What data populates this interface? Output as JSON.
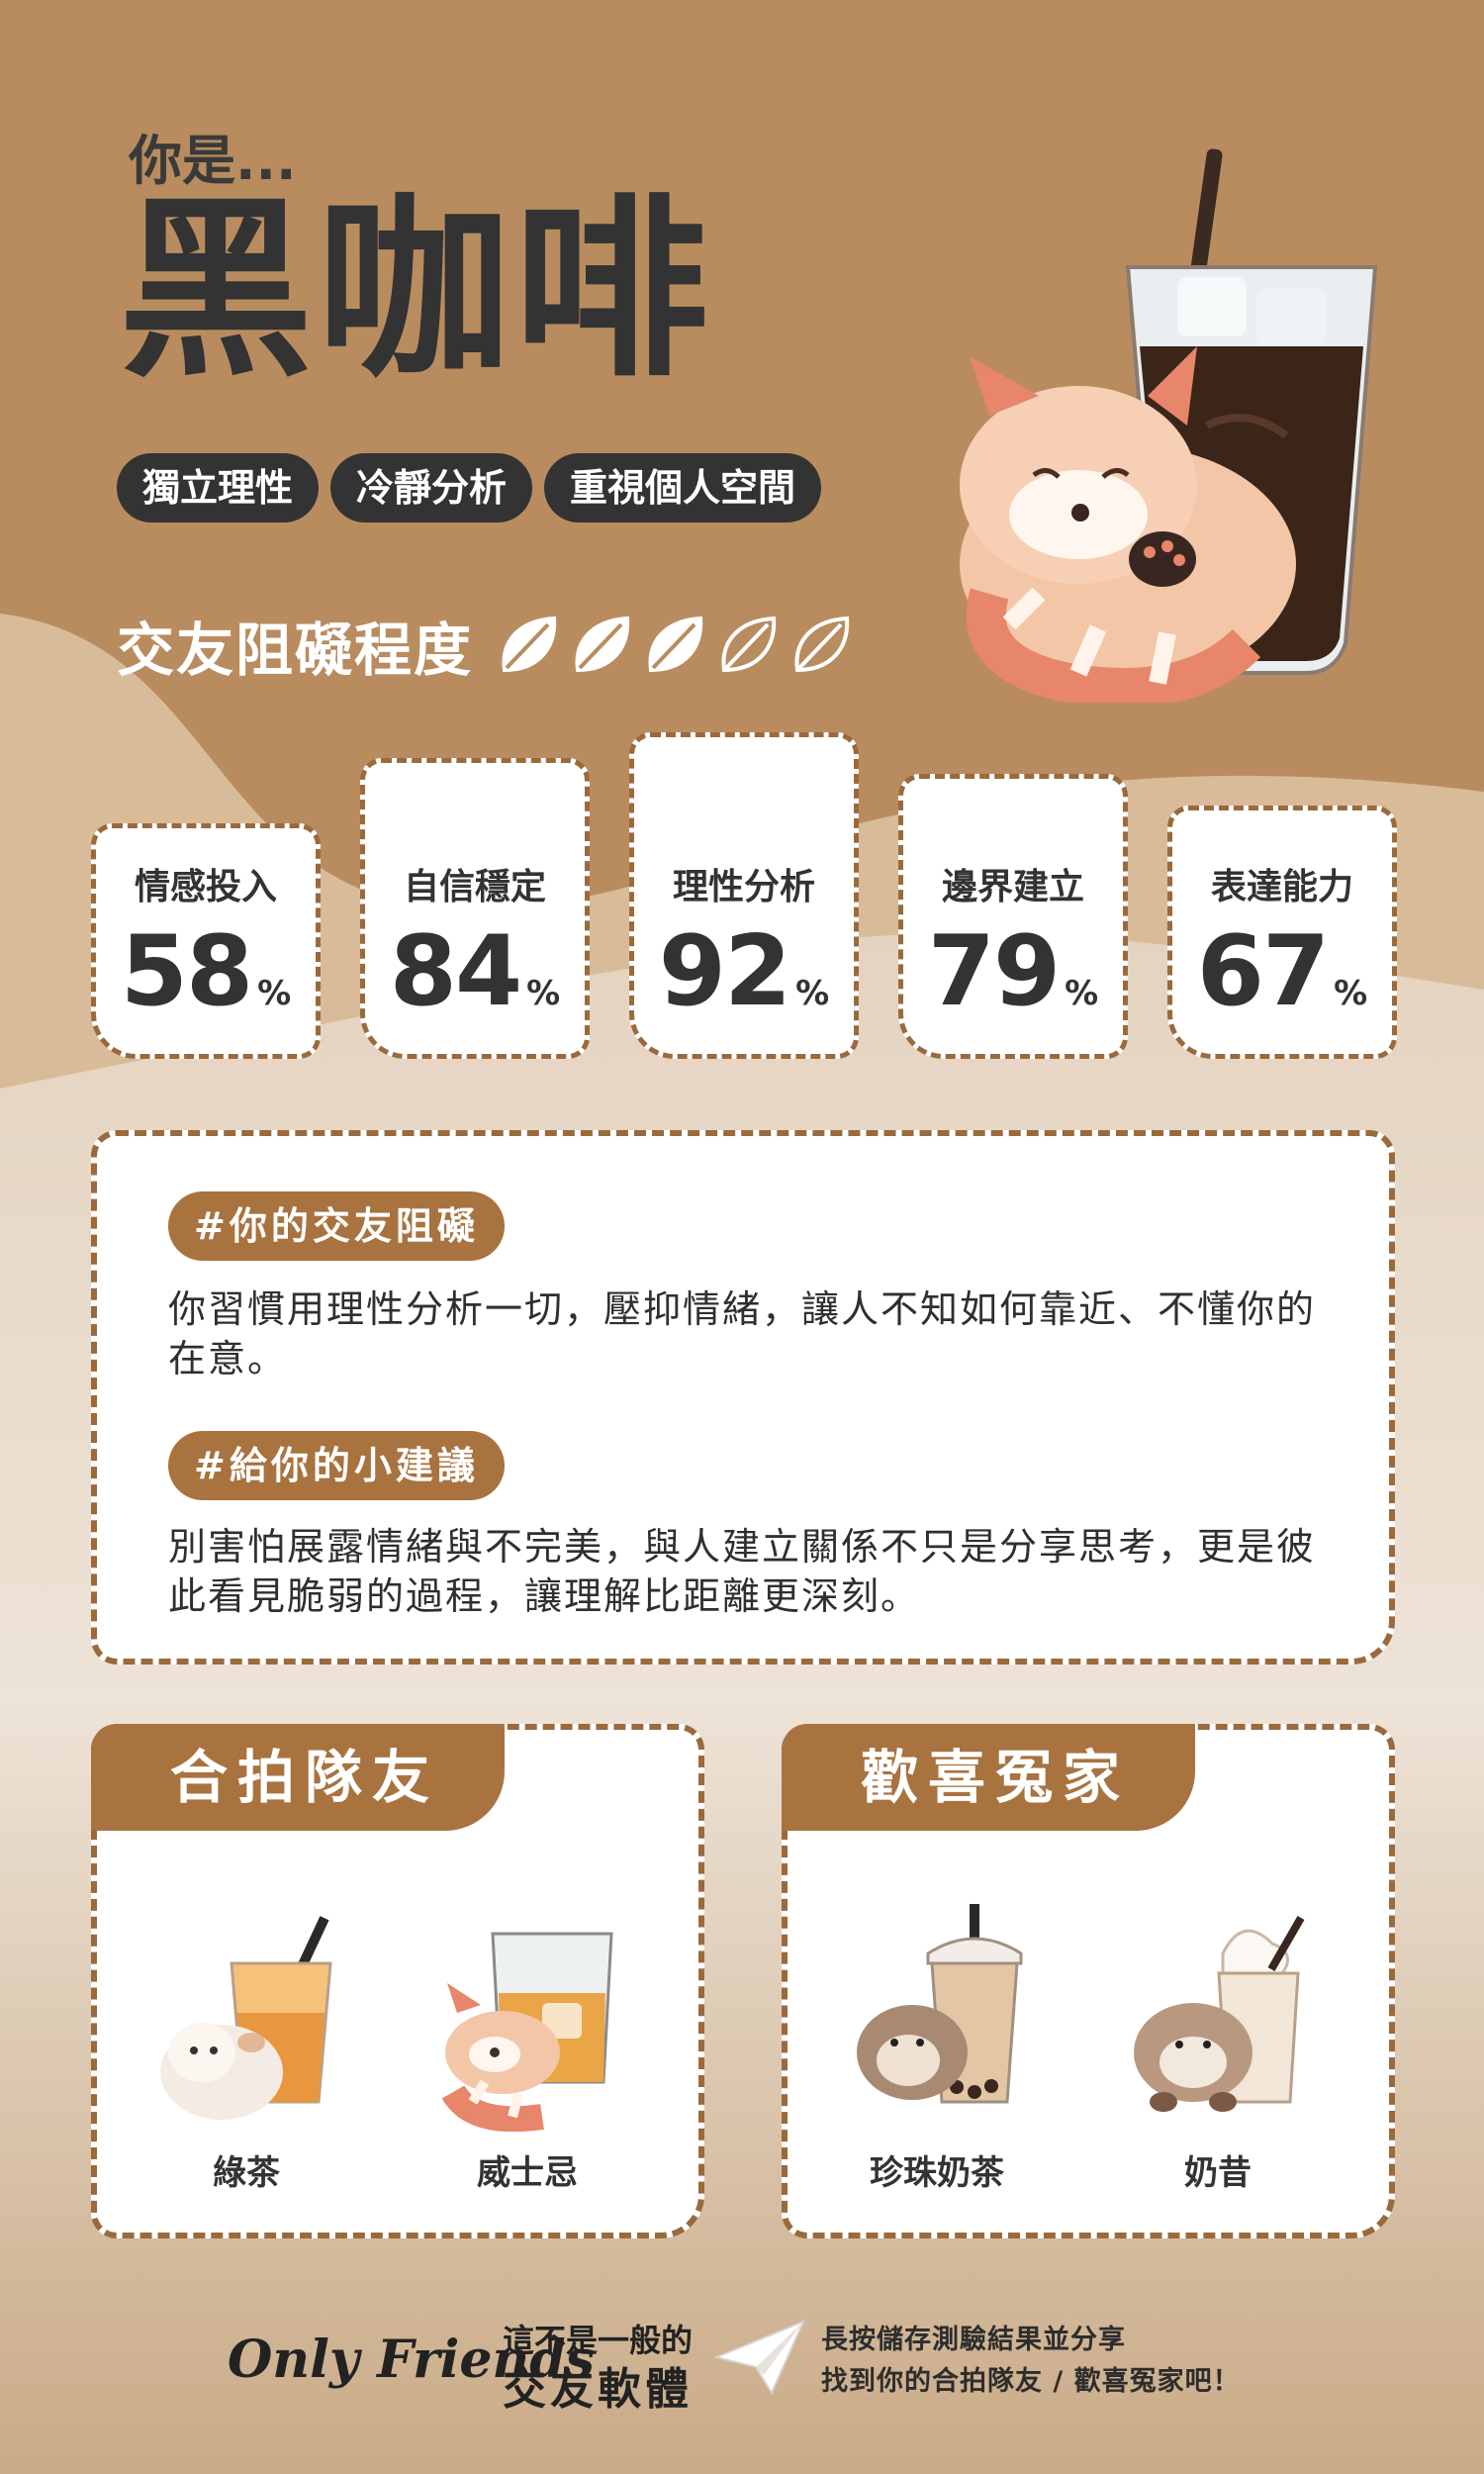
{
  "header": {
    "intro": "你是...",
    "title": "黑咖啡",
    "tags": [
      "獨立理性",
      "冷靜分析",
      "重視個人空間"
    ]
  },
  "obstacle": {
    "label": "交友阻礙程度",
    "level": 3,
    "max": 5
  },
  "stats": [
    {
      "label": "情感投入",
      "value": "58",
      "unit": "%"
    },
    {
      "label": "自信穩定",
      "value": "84",
      "unit": "%"
    },
    {
      "label": "理性分析",
      "value": "92",
      "unit": "%"
    },
    {
      "label": "邊界建立",
      "value": "79",
      "unit": "%"
    },
    {
      "label": "表達能力",
      "value": "67",
      "unit": "%"
    }
  ],
  "analysis": {
    "obstacle_heading": "#你的交友阻礙",
    "obstacle_text": "你習慣用理性分析一切，壓抑情緒，讓人不知如何靠近、不懂你的在意。",
    "advice_heading": "#給你的小建議",
    "advice_text": "別害怕展露情緒與不完美，與人建立關係不只是分享思考，更是彼此看見脆弱的過程，讓理解比距離更深刻。"
  },
  "teammates": {
    "title": "合拍隊友",
    "items": [
      {
        "name": "綠茶",
        "icon": "green-tea-hamster-icon"
      },
      {
        "name": "威士忌",
        "icon": "whisky-red-panda-icon"
      }
    ]
  },
  "rivals": {
    "title": "歡喜冤家",
    "items": [
      {
        "name": "珍珠奶茶",
        "icon": "bubble-tea-otter-icon"
      },
      {
        "name": "奶昔",
        "icon": "milkshake-otter-icon"
      }
    ]
  },
  "footer": {
    "brand": "Only Friends",
    "sub1": "這不是一般的",
    "sub2": "交友軟體",
    "cta1": "長按儲存測驗結果並分享",
    "cta2": "找到你的合拍隊友 / 歡喜冤家吧！"
  },
  "colors": {
    "background_top": "#b98c5f",
    "background_bottom": "#eadfd3",
    "accent": "#a8733f",
    "dark": "#333333"
  }
}
